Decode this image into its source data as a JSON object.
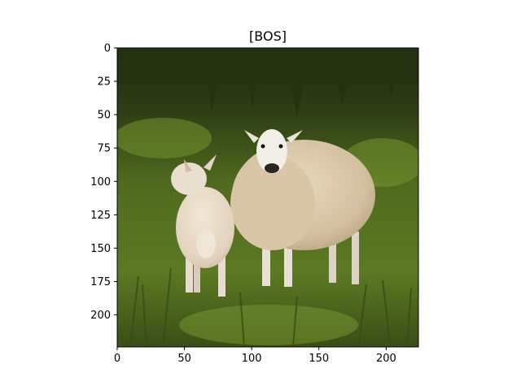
{
  "figure": {
    "title": "[BOS]",
    "image_description_icon": "photo-icon",
    "x_axis": {
      "ticks": [
        "0",
        "50",
        "100",
        "150",
        "200"
      ],
      "values": [
        0,
        50,
        100,
        150,
        200
      ],
      "range": [
        0,
        224
      ]
    },
    "y_axis": {
      "ticks": [
        "0",
        "25",
        "50",
        "75",
        "100",
        "125",
        "150",
        "175",
        "200"
      ],
      "values": [
        0,
        25,
        50,
        75,
        100,
        125,
        150,
        175,
        200
      ],
      "range": [
        0,
        224
      ]
    }
  },
  "colors": {
    "grass_dark": "#2f3f14",
    "grass_mid": "#4f6a1e",
    "grass_light": "#6f8f2c",
    "wool": "#d8c6a8",
    "wool_shadow": "#b9a07c",
    "lamb": "#e6d7c4",
    "face": "#f2efe8"
  }
}
